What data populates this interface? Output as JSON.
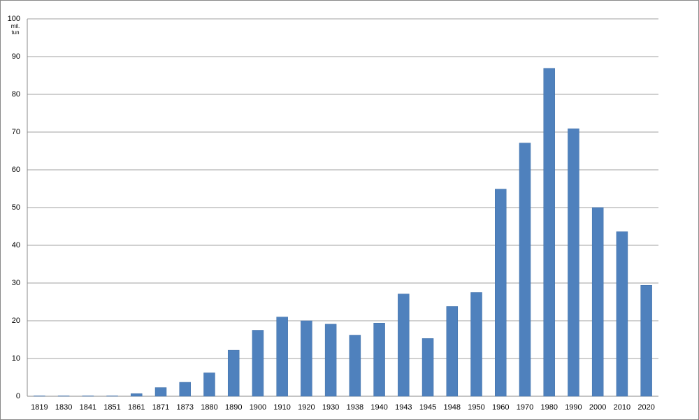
{
  "chart_data": {
    "type": "bar",
    "y_label": "mil. tun",
    "categories": [
      "1819",
      "1830",
      "1841",
      "1851",
      "1861",
      "1871",
      "1873",
      "1880",
      "1890",
      "1900",
      "1910",
      "1920",
      "1930",
      "1938",
      "1940",
      "1943",
      "1945",
      "1948",
      "1950",
      "1960",
      "1970",
      "1980",
      "1990",
      "2000",
      "2010",
      "2020"
    ],
    "values": [
      0.1,
      0.1,
      0.1,
      0.1,
      0.7,
      2.3,
      3.7,
      6.2,
      12.2,
      17.5,
      21,
      20,
      19.1,
      16.2,
      19.4,
      27.1,
      15.3,
      23.8,
      27.5,
      54.9,
      67.1,
      86.9,
      70.9,
      50,
      43.6,
      29.4
    ],
    "color": "#4f81bd",
    "ylim": [
      0,
      100
    ],
    "yticks": [
      0,
      10,
      20,
      30,
      40,
      50,
      60,
      70,
      80,
      90,
      100
    ],
    "grid": true
  }
}
